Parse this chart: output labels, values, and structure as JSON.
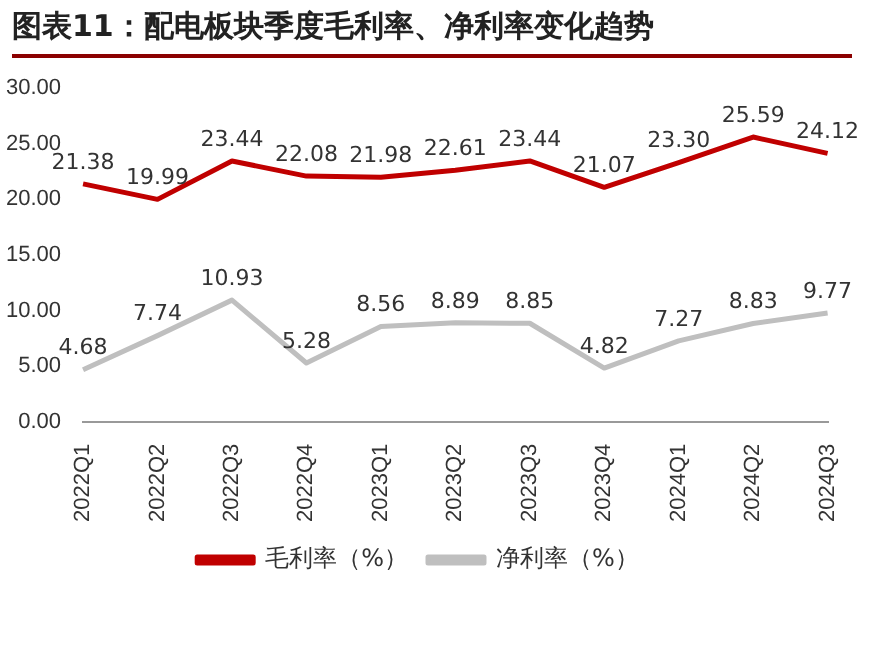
{
  "chart_data": {
    "type": "line",
    "title": "图表11：配电板块季度毛利率、净利率变化趋势",
    "categories": [
      "2022Q1",
      "2022Q2",
      "2022Q3",
      "2022Q4",
      "2023Q1",
      "2023Q2",
      "2023Q3",
      "2023Q4",
      "2024Q1",
      "2024Q2",
      "2024Q3"
    ],
    "series": [
      {
        "name": "毛利率（%）",
        "color": "#c00000",
        "values": [
          21.38,
          19.99,
          23.44,
          22.08,
          21.98,
          22.61,
          23.44,
          21.07,
          23.3,
          25.59,
          24.12
        ],
        "value_labels": [
          "21.38",
          "19.99",
          "23.44",
          "22.08",
          "21.98",
          "22.61",
          "23.44",
          "21.07",
          "23.30",
          "25.59",
          "24.12"
        ]
      },
      {
        "name": "净利率（%）",
        "color": "#bfbfbf",
        "values": [
          4.68,
          7.74,
          10.93,
          5.28,
          8.56,
          8.89,
          8.85,
          4.82,
          7.27,
          8.83,
          9.77
        ],
        "value_labels": [
          "4.68",
          "7.74",
          "10.93",
          "5.28",
          "8.56",
          "8.89",
          "8.85",
          "4.82",
          "7.27",
          "8.83",
          "9.77"
        ]
      }
    ],
    "ylim": [
      0,
      30
    ],
    "yticks": [
      {
        "value": 0,
        "label": "0.00"
      },
      {
        "value": 5,
        "label": "5.00"
      },
      {
        "value": 10,
        "label": "10.00"
      },
      {
        "value": 15,
        "label": "15.00"
      },
      {
        "value": 20,
        "label": "20.00"
      },
      {
        "value": 25,
        "label": "25.00"
      },
      {
        "value": 30,
        "label": "30.00"
      }
    ],
    "legend": "bottom",
    "marker": "none",
    "line_style": "solid"
  }
}
